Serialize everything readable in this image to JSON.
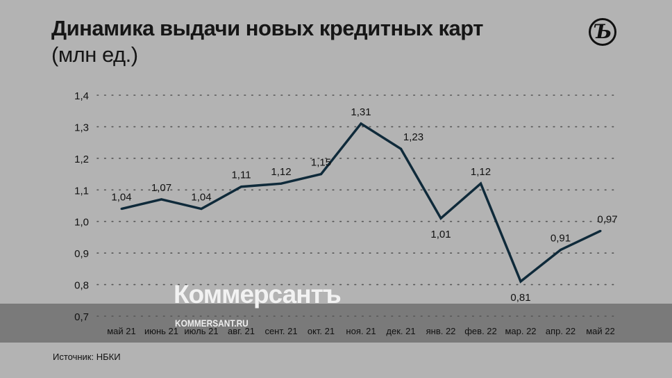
{
  "title": {
    "main": "Динамика выдачи новых кредитных карт",
    "unit": "(млн ед.)"
  },
  "logo": {
    "text": "Ъ",
    "icon": "kommersant-logo-icon"
  },
  "watermark": {
    "brand": "Коммерсантъ",
    "url": "KOMMERSANT.RU"
  },
  "source": "Источник: НБКИ",
  "colors": {
    "background": "#b3b3b3",
    "band": "#7a7a7a",
    "line": "#0f2a3a"
  },
  "chart_data": {
    "type": "line",
    "title": "Динамика выдачи новых кредитных карт (млн ед.)",
    "categories": [
      "май 21",
      "июнь 21",
      "июль 21",
      "авг. 21",
      "сент. 21",
      "окт. 21",
      "ноя. 21",
      "дек. 21",
      "янв. 22",
      "фев. 22",
      "мар. 22",
      "апр. 22",
      "май 22"
    ],
    "values": [
      1.04,
      1.07,
      1.04,
      1.11,
      1.12,
      1.15,
      1.31,
      1.23,
      1.01,
      1.12,
      0.81,
      0.91,
      0.97
    ],
    "value_labels": [
      "1,04",
      "1,07",
      "1,04",
      "1,11",
      "1,12",
      "1,15",
      "1,31",
      "1,23",
      "1,01",
      "1,12",
      "0,81",
      "0,91",
      "0,97"
    ],
    "yticks": [
      0.7,
      0.8,
      0.9,
      1.0,
      1.1,
      1.2,
      1.3,
      1.4
    ],
    "ytick_labels": [
      "0,7",
      "0,8",
      "0,9",
      "1,0",
      "1,1",
      "1,2",
      "1,3",
      "1,4"
    ],
    "ylim": [
      0.7,
      1.4
    ],
    "grid": true,
    "xlabel": "",
    "ylabel": ""
  }
}
